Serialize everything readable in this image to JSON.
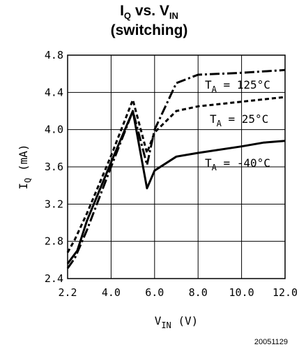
{
  "chart_data": {
    "type": "line",
    "title": {
      "line1_parts": [
        "I",
        "Q",
        " vs. V",
        "IN"
      ],
      "line2": "(switching)"
    },
    "xlabel": {
      "main": "V",
      "sub": "IN",
      "unit": " (V)"
    },
    "ylabel": {
      "main": "I",
      "sub": "Q",
      "unit": " (mA)"
    },
    "xlim": [
      2.2,
      12.0
    ],
    "ylim": [
      2.4,
      4.8
    ],
    "x_ticks": [
      2.2,
      4.0,
      6.0,
      8.0,
      10.0,
      12.0
    ],
    "x_tick_labels": [
      "2.2",
      "4.0",
      "6.0",
      "8.0",
      "10.0",
      "12.0"
    ],
    "y_ticks": [
      2.4,
      2.8,
      3.2,
      3.6,
      4.0,
      4.4,
      4.8
    ],
    "y_tick_labels": [
      "2.4",
      "2.8",
      "3.2",
      "3.6",
      "4.0",
      "4.4",
      "4.8"
    ],
    "grid": true,
    "series": [
      {
        "label_main": "T",
        "label_sub": "A",
        "label_rest": " = 125°C",
        "style": "dashdot",
        "points": [
          [
            2.2,
            2.51
          ],
          [
            2.5,
            2.62
          ],
          [
            3.0,
            2.92
          ],
          [
            4.0,
            3.6
          ],
          [
            5.0,
            4.2
          ],
          [
            5.65,
            3.62
          ],
          [
            6.0,
            4.0
          ],
          [
            7.0,
            4.5
          ],
          [
            8.0,
            4.59
          ],
          [
            10.0,
            4.61
          ],
          [
            12.0,
            4.64
          ]
        ]
      },
      {
        "label_main": "T",
        "label_sub": "A",
        "label_rest": " = 25°C",
        "style": "dotted",
        "points": [
          [
            2.2,
            2.68
          ],
          [
            2.5,
            2.82
          ],
          [
            3.0,
            3.1
          ],
          [
            4.0,
            3.72
          ],
          [
            5.0,
            4.32
          ],
          [
            5.65,
            3.75
          ],
          [
            6.0,
            3.97
          ],
          [
            7.0,
            4.2
          ],
          [
            8.0,
            4.25
          ],
          [
            10.0,
            4.3
          ],
          [
            12.0,
            4.35
          ]
        ]
      },
      {
        "label_main": "T",
        "label_sub": "A",
        "label_rest": " = -40°C",
        "style": "solid",
        "points": [
          [
            2.2,
            2.56
          ],
          [
            2.6,
            2.7
          ],
          [
            3.0,
            3.02
          ],
          [
            4.0,
            3.65
          ],
          [
            5.0,
            4.2
          ],
          [
            5.65,
            3.37
          ],
          [
            6.0,
            3.56
          ],
          [
            7.0,
            3.71
          ],
          [
            8.0,
            3.75
          ],
          [
            10.0,
            3.82
          ],
          [
            11.0,
            3.86
          ],
          [
            12.0,
            3.88
          ]
        ]
      }
    ],
    "figure_id": "20051129"
  }
}
